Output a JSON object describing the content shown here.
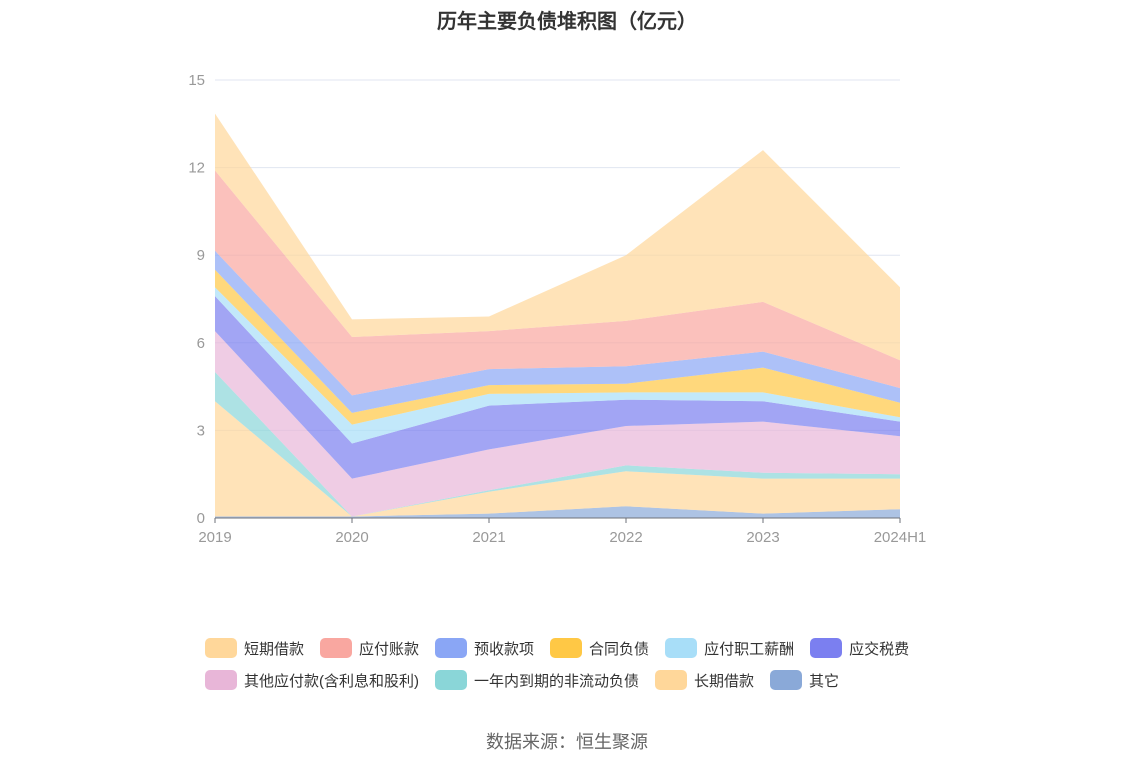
{
  "chart_data": {
    "type": "area",
    "stacked": true,
    "title": "历年主要负债堆积图（亿元）",
    "categories": [
      "2019",
      "2020",
      "2021",
      "2022",
      "2023",
      "2024H1"
    ],
    "ylim": [
      0,
      15
    ],
    "yticks": [
      0,
      3,
      6,
      9,
      12,
      15
    ],
    "grid": true,
    "legend_position": "bottom",
    "series": [
      {
        "name": "其它",
        "color": "#8aa9d8",
        "values": [
          0.05,
          0.05,
          0.15,
          0.4,
          0.15,
          0.3
        ]
      },
      {
        "name": "长期借款",
        "color": "#ffd79a",
        "values": [
          3.95,
          0,
          0.75,
          1.2,
          1.2,
          1.05
        ]
      },
      {
        "name": "一年内到期的非流动负债",
        "color": "#8ad6d8",
        "values": [
          1.0,
          0,
          0.05,
          0.2,
          0.2,
          0.15
        ]
      },
      {
        "name": "其他应付款(含利息和股利)",
        "color": "#e8b6d8",
        "values": [
          1.4,
          1.3,
          1.4,
          1.35,
          1.75,
          1.3
        ]
      },
      {
        "name": "应交税费",
        "color": "#7b7ff0",
        "values": [
          1.2,
          1.2,
          1.5,
          0.9,
          0.7,
          0.5
        ]
      },
      {
        "name": "应付职工薪酬",
        "color": "#a8def8",
        "values": [
          0.3,
          0.65,
          0.4,
          0.25,
          0.3,
          0.15
        ]
      },
      {
        "name": "合同负债",
        "color": "#ffc845",
        "values": [
          0.6,
          0.4,
          0.3,
          0.3,
          0.85,
          0.5
        ]
      },
      {
        "name": "预收款项",
        "color": "#8aa6f5",
        "values": [
          0.65,
          0.6,
          0.55,
          0.6,
          0.55,
          0.5
        ]
      },
      {
        "name": "应付账款",
        "color": "#f9a7a0",
        "values": [
          2.75,
          2.0,
          1.3,
          1.55,
          1.7,
          0.95
        ]
      },
      {
        "name": "短期借款",
        "color": "#ffd79a",
        "values": [
          1.95,
          0.6,
          0.5,
          2.25,
          5.2,
          2.5
        ]
      }
    ]
  },
  "legend_order": [
    "短期借款",
    "应付账款",
    "预收款项",
    "合同负债",
    "应付职工薪酬",
    "应交税费",
    "其他应付款(含利息和股利)",
    "一年内到期的非流动负债",
    "长期借款",
    "其它"
  ],
  "source_text": "数据来源：恒生聚源"
}
